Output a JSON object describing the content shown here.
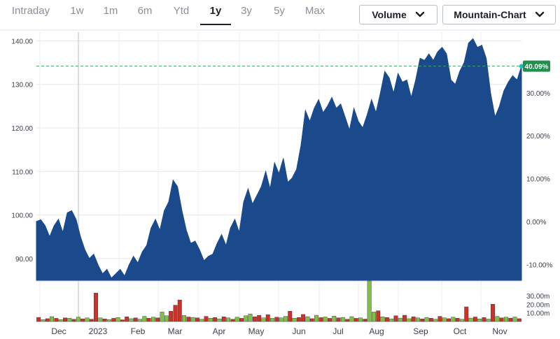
{
  "tabs": [
    {
      "label": "Intraday",
      "active": false
    },
    {
      "label": "1w",
      "active": false
    },
    {
      "label": "1m",
      "active": false
    },
    {
      "label": "6m",
      "active": false
    },
    {
      "label": "Ytd",
      "active": false
    },
    {
      "label": "1y",
      "active": true
    },
    {
      "label": "3y",
      "active": false
    },
    {
      "label": "5y",
      "active": false
    },
    {
      "label": "Max",
      "active": false
    }
  ],
  "controls": {
    "volume_label": "Volume",
    "chart_type_label": "Mountain-Chart",
    "chevron_icon": "chevron-down-icon"
  },
  "colors": {
    "area_fill": "#1b4a8c",
    "reference_line": "#3fa26b",
    "badge": "#1e8f4d",
    "vol_up": "#7fc241",
    "vol_down": "#c8332c"
  },
  "chart_data": {
    "type": "area",
    "price_axis": {
      "ylim": [
        85,
        142
      ],
      "ticks": [
        "90.00",
        "100.00",
        "110.00",
        "120.00",
        "130.00",
        "140.00"
      ]
    },
    "percent_axis": {
      "ticks": [
        "-10.00%",
        "0.00%",
        "10.00%",
        "20.00%",
        "30.00%"
      ]
    },
    "current_change_label": "40.09%",
    "reference_price": 134.2,
    "x_labels": [
      "Dec",
      "2023",
      "Feb",
      "Mar",
      "Apr",
      "May",
      "Jun",
      "Jul",
      "Aug",
      "Sep",
      "Oct",
      "Nov"
    ],
    "price_series": [
      98.5,
      98.9,
      97.5,
      95.0,
      97.5,
      99.0,
      96.0,
      100.5,
      101.0,
      99.0,
      95.0,
      92.0,
      90.0,
      91.0,
      88.5,
      86.5,
      87.5,
      85.5,
      86.5,
      87.5,
      86.0,
      88.5,
      90.5,
      89.0,
      91.5,
      93.0,
      97.0,
      99.0,
      96.5,
      101.0,
      103.0,
      108.0,
      106.5,
      101.0,
      96.5,
      93.5,
      94.0,
      92.0,
      89.5,
      90.5,
      91.0,
      93.5,
      95.5,
      93.0,
      97.0,
      99.0,
      96.0,
      103.0,
      106.0,
      102.5,
      104.5,
      106.5,
      110.0,
      106.0,
      112.0,
      109.5,
      113.0,
      107.5,
      108.5,
      110.5,
      116.0,
      124.0,
      121.5,
      124.5,
      126.5,
      123.5,
      125.0,
      127.0,
      124.5,
      125.5,
      122.5,
      119.5,
      124.5,
      121.5,
      120.0,
      123.0,
      126.5,
      123.5,
      128.0,
      133.0,
      131.5,
      128.0,
      132.5,
      130.5,
      131.0,
      127.0,
      131.0,
      136.0,
      135.5,
      137.0,
      135.5,
      137.5,
      138.5,
      137.0,
      131.0,
      130.0,
      133.0,
      135.0,
      139.5,
      140.5,
      138.5,
      139.0,
      136.0,
      128.0,
      122.5,
      125.0,
      128.5,
      130.5,
      132.0,
      131.0,
      134.2
    ],
    "volume_axis": {
      "ticks": [
        "10.00m",
        "20.00m",
        "30.00m"
      ]
    },
    "volume_series": [
      {
        "v": 4.8,
        "up": false
      },
      {
        "v": 2.2,
        "up": true
      },
      {
        "v": 3.3,
        "up": false
      },
      {
        "v": 5.7,
        "up": true
      },
      {
        "v": 3.7,
        "up": false
      },
      {
        "v": 2.2,
        "up": true
      },
      {
        "v": 4.3,
        "up": false
      },
      {
        "v": 3.8,
        "up": true
      },
      {
        "v": 2.7,
        "up": false
      },
      {
        "v": 5.0,
        "up": true
      },
      {
        "v": 3.2,
        "up": false
      },
      {
        "v": 4.2,
        "up": true
      },
      {
        "v": 2.7,
        "up": false
      },
      {
        "v": 33.0,
        "up": false
      },
      {
        "v": 4.3,
        "up": true
      },
      {
        "v": 3.0,
        "up": false
      },
      {
        "v": 2.3,
        "up": true
      },
      {
        "v": 3.7,
        "up": false
      },
      {
        "v": 4.7,
        "up": true
      },
      {
        "v": 2.0,
        "up": false
      },
      {
        "v": 5.5,
        "up": false
      },
      {
        "v": 3.3,
        "up": true
      },
      {
        "v": 4.2,
        "up": false
      },
      {
        "v": 2.7,
        "up": true
      },
      {
        "v": 6.0,
        "up": true
      },
      {
        "v": 3.8,
        "up": false
      },
      {
        "v": 5.0,
        "up": true
      },
      {
        "v": 4.3,
        "up": false
      },
      {
        "v": 11.0,
        "up": true
      },
      {
        "v": 6.7,
        "up": true
      },
      {
        "v": 12.0,
        "up": false
      },
      {
        "v": 19.0,
        "up": false
      },
      {
        "v": 25.0,
        "up": false
      },
      {
        "v": 7.0,
        "up": true
      },
      {
        "v": 5.3,
        "up": false
      },
      {
        "v": 4.8,
        "up": true
      },
      {
        "v": 4.2,
        "up": false
      },
      {
        "v": 2.7,
        "up": true
      },
      {
        "v": 6.0,
        "up": false
      },
      {
        "v": 3.8,
        "up": true
      },
      {
        "v": 4.7,
        "up": false
      },
      {
        "v": 3.2,
        "up": true
      },
      {
        "v": 5.5,
        "up": false
      },
      {
        "v": 4.3,
        "up": true
      },
      {
        "v": 2.7,
        "up": false
      },
      {
        "v": 5.0,
        "up": true
      },
      {
        "v": 3.7,
        "up": false
      },
      {
        "v": 6.7,
        "up": true
      },
      {
        "v": 8.8,
        "up": true
      },
      {
        "v": 5.5,
        "up": false
      },
      {
        "v": 7.2,
        "up": false
      },
      {
        "v": 4.2,
        "up": true
      },
      {
        "v": 8.0,
        "up": false
      },
      {
        "v": 3.7,
        "up": true
      },
      {
        "v": 5.0,
        "up": false
      },
      {
        "v": 4.3,
        "up": true
      },
      {
        "v": 6.0,
        "up": true
      },
      {
        "v": 12.0,
        "up": false
      },
      {
        "v": 3.8,
        "up": true
      },
      {
        "v": 4.7,
        "up": false
      },
      {
        "v": 8.2,
        "up": false
      },
      {
        "v": 5.7,
        "up": true
      },
      {
        "v": 3.3,
        "up": false
      },
      {
        "v": 7.3,
        "up": true
      },
      {
        "v": 4.5,
        "up": false
      },
      {
        "v": 5.3,
        "up": true
      },
      {
        "v": 3.7,
        "up": false
      },
      {
        "v": 6.3,
        "up": true
      },
      {
        "v": 4.2,
        "up": false
      },
      {
        "v": 4.8,
        "up": true
      },
      {
        "v": 2.7,
        "up": false
      },
      {
        "v": 5.7,
        "up": true
      },
      {
        "v": 3.7,
        "up": false
      },
      {
        "v": 4.3,
        "up": true
      },
      {
        "v": 2.8,
        "up": false
      },
      {
        "v": 50.0,
        "up": true
      },
      {
        "v": 11.0,
        "up": true
      },
      {
        "v": 12.5,
        "up": false
      },
      {
        "v": 5.5,
        "up": true
      },
      {
        "v": 4.7,
        "up": false
      },
      {
        "v": 3.2,
        "up": true
      },
      {
        "v": 6.7,
        "up": false
      },
      {
        "v": 4.0,
        "up": true
      },
      {
        "v": 7.3,
        "up": false
      },
      {
        "v": 3.3,
        "up": true
      },
      {
        "v": 5.5,
        "up": false
      },
      {
        "v": 4.2,
        "up": true
      },
      {
        "v": 3.0,
        "up": false
      },
      {
        "v": 4.8,
        "up": true
      },
      {
        "v": 3.8,
        "up": false
      },
      {
        "v": 2.7,
        "up": true
      },
      {
        "v": 6.0,
        "up": false
      },
      {
        "v": 4.3,
        "up": true
      },
      {
        "v": 3.3,
        "up": false
      },
      {
        "v": 5.0,
        "up": true
      },
      {
        "v": 3.8,
        "up": false
      },
      {
        "v": 2.7,
        "up": true
      },
      {
        "v": 17.0,
        "up": false
      },
      {
        "v": 4.0,
        "up": true
      },
      {
        "v": 5.3,
        "up": false
      },
      {
        "v": 3.0,
        "up": true
      },
      {
        "v": 4.7,
        "up": false
      },
      {
        "v": 2.8,
        "up": true
      },
      {
        "v": 20.0,
        "up": false
      },
      {
        "v": 6.0,
        "up": true
      },
      {
        "v": 4.2,
        "up": false
      },
      {
        "v": 5.0,
        "up": true
      },
      {
        "v": 4.0,
        "up": false
      },
      {
        "v": 5.3,
        "up": true
      },
      {
        "v": 3.3,
        "up": false
      }
    ]
  }
}
